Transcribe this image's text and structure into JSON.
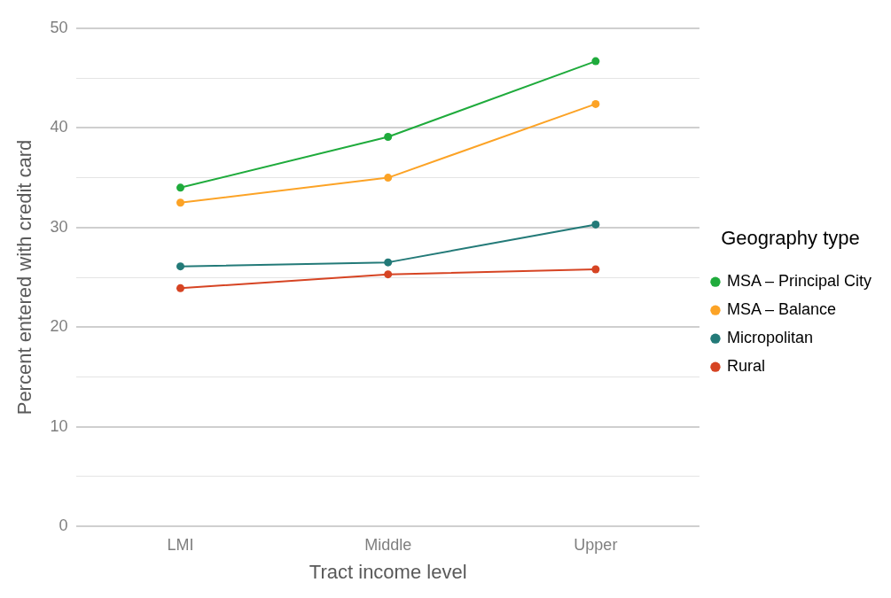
{
  "chart_data": {
    "type": "line",
    "xlabel": "Tract income level",
    "ylabel": "Percent entered with credit card",
    "legend_title": "Geography type",
    "legend": "right",
    "grid": "y",
    "marker": "circle",
    "line_style": "solid",
    "categories": [
      "LMI",
      "Middle",
      "Upper"
    ],
    "ylim": [
      0,
      50
    ],
    "yticks": [
      0,
      {
        "value": 5,
        "label": null
      },
      10,
      {
        "value": 15,
        "label": null
      },
      20,
      {
        "value": 25,
        "label": null
      },
      30,
      {
        "value": 35,
        "label": null
      },
      40,
      {
        "value": 45,
        "label": null
      },
      50
    ],
    "series": [
      {
        "name": "MSA – Principal City",
        "color": "#1fab3c",
        "values": [
          34.0,
          39.1,
          46.7
        ]
      },
      {
        "name": "MSA – Balance",
        "color": "#fca326",
        "values": [
          32.5,
          35.0,
          42.4
        ]
      },
      {
        "name": "Micropolitan",
        "color": "#237a78",
        "values": [
          26.1,
          26.5,
          30.3
        ]
      },
      {
        "name": "Rural",
        "color": "#d64423",
        "values": [
          23.9,
          25.3,
          25.8
        ]
      }
    ]
  }
}
